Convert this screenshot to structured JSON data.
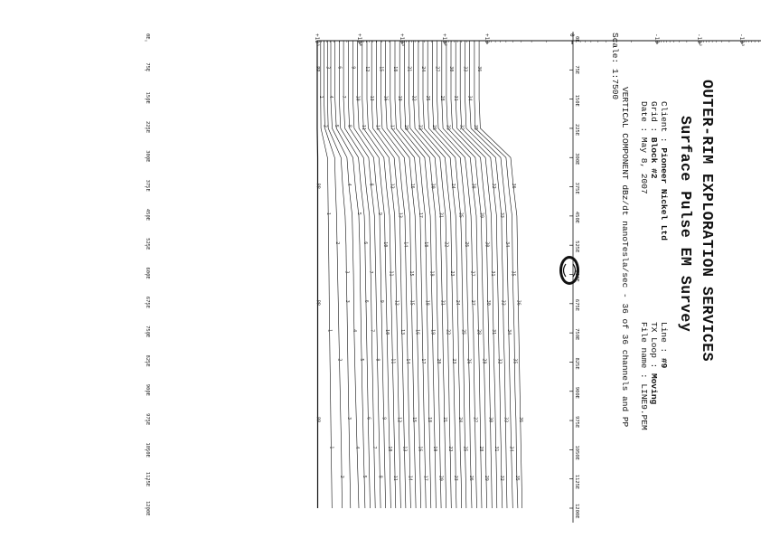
{
  "header": {
    "company": "OUTER-RIM EXPLORATION SERVICES",
    "survey": "Surface Pulse EM Survey",
    "client_label": "Client",
    "client": "Pioneer Nickel Ltd",
    "grid_label": "Grid",
    "grid": "Block #2",
    "date_label": "Date",
    "date": "May 8, 2007",
    "line_label": "Line",
    "line": "#9",
    "loop_label": "TX Loop",
    "loop": "Moving",
    "file_label": "File name",
    "file": "LINE9.PEM",
    "component": "VERTICAL COMPONENT dBz/dt nanoTesla/sec - 36 of 36 channels and PP",
    "scale": "Scale: 1:7500"
  },
  "chart_data": {
    "type": "line",
    "title": "Surface Pulse EM Survey",
    "ylabel": "VERTICAL COMPONENT dBz/dt nanoTesla/sec",
    "y_scale": "symmetric-log",
    "y_tick_labels": [
      "-10⁵",
      "-10⁴",
      "-10³",
      "-10²",
      "-10",
      "0",
      "+10",
      "+10²",
      "+10³",
      "+10⁴",
      "+10⁵"
    ],
    "x_tick_labels": [
      "0E",
      "75E",
      "150E",
      "225E",
      "300E",
      "375E",
      "450E",
      "525E",
      "600E",
      "675E",
      "750E",
      "825E",
      "900E",
      "975E",
      "1050E",
      "1125E",
      "1200E"
    ],
    "x": [
      0,
      75,
      150,
      225,
      300,
      375,
      450,
      525,
      600,
      675,
      750,
      825,
      900,
      975,
      1050,
      1125,
      1200
    ],
    "channel_count": 36,
    "series": [
      {
        "name": "PP",
        "values": [
          100000,
          100000,
          100000,
          100000,
          97800,
          97800,
          97800,
          97800,
          97800,
          97800,
          97800,
          97800,
          97800,
          97800,
          97800,
          97800,
          97800
        ]
      },
      {
        "name": "1",
        "values": [
          83176,
          83176,
          83176,
          81752,
          57544,
          56234,
          55000,
          54000,
          53000,
          52000,
          51000,
          50000,
          49000,
          48000,
          47000,
          46000,
          45000
        ]
      },
      {
        "name": "2",
        "values": [
          69183,
          69183,
          69183,
          66069,
          38905,
          37154,
          35000,
          34000,
          33000,
          32000,
          31000,
          30000,
          29000,
          28000,
          27000,
          26500,
          26000
        ]
      },
      {
        "name": "3",
        "values": [
          57544,
          57544,
          57544,
          54954,
          27542,
          25119,
          22000,
          21000,
          20500,
          20000,
          19500,
          19000,
          18500,
          18000,
          17500,
          17000,
          16500
        ]
      },
      {
        "name": "4",
        "values": [
          47863,
          47863,
          47863,
          44668,
          19953,
          17783,
          15000,
          14500,
          14000,
          13800,
          13500,
          13000,
          12500,
          12000,
          11500,
          11000,
          10500
        ]
      },
      {
        "name": "5",
        "values": [
          38019,
          38019,
          38019,
          35481,
          14454,
          12589,
          10500,
          10000,
          9800,
          9500,
          9300,
          9000,
          8700,
          8400,
          8100,
          7800,
          7500
        ]
      },
      {
        "name": "6",
        "values": [
          30200,
          30200,
          30200,
          28184,
          10715,
          9333,
          7800,
          7500,
          7300,
          7100,
          6900,
          6700,
          6500,
          6300,
          6100,
          5900,
          5700
        ]
      },
      {
        "name": "7",
        "values": [
          23988,
          23988,
          23988,
          22387,
          8128,
          7079,
          5900,
          5700,
          5500,
          5350,
          5200,
          5050,
          4900,
          4750,
          4600,
          4450,
          4300
        ]
      },
      {
        "name": "8",
        "values": [
          18620,
          18620,
          18620,
          17378,
          6166,
          5370,
          4500,
          4350,
          4200,
          4080,
          3950,
          3830,
          3700,
          3580,
          3460,
          3340,
          3220
        ]
      },
      {
        "name": "9",
        "values": [
          14454,
          14454,
          14454,
          13490,
          4677,
          4074,
          3400,
          3300,
          3200,
          3100,
          3000,
          2900,
          2800,
          2700,
          2620,
          2540,
          2460
        ]
      },
      {
        "name": "10",
        "values": [
          11220,
          11220,
          11220,
          10471,
          3548,
          3090,
          2600,
          2520,
          2440,
          2360,
          2280,
          2200,
          2130,
          2060,
          1990,
          1920,
          1850
        ]
      },
      {
        "name": "11",
        "values": [
          8710,
          8710,
          8710,
          8128,
          2692,
          2344,
          1980,
          1920,
          1860,
          1800,
          1740,
          1680,
          1620,
          1570,
          1520,
          1470,
          1420
        ]
      },
      {
        "name": "12",
        "values": [
          6761,
          6761,
          6761,
          6310,
          2042,
          1778,
          1500,
          1455,
          1410,
          1365,
          1320,
          1280,
          1240,
          1200,
          1160,
          1120,
          1080
        ]
      },
      {
        "name": "13",
        "values": [
          5248,
          5248,
          5248,
          4898,
          1549,
          1349,
          1140,
          1105,
          1070,
          1040,
          1010,
          975,
          945,
          915,
          885,
          855,
          825
        ]
      },
      {
        "name": "14",
        "values": [
          4074,
          4074,
          4074,
          3802,
          1175,
          1023,
          865,
          840,
          815,
          790,
          765,
          740,
          718,
          696,
          674,
          652,
          630
        ]
      },
      {
        "name": "15",
        "values": [
          3162,
          3162,
          3162,
          2951,
          891,
          776,
          656,
          637,
          618,
          599,
          580,
          562,
          545,
          528,
          511,
          494,
          478
        ]
      },
      {
        "name": "16",
        "values": [
          2455,
          2455,
          2455,
          2291,
          676,
          589,
          498,
          483,
          469,
          455,
          441,
          427,
          414,
          401,
          388,
          376,
          364
        ]
      },
      {
        "name": "17",
        "values": [
          1905,
          1905,
          1905,
          1778,
          513,
          447,
          378,
          367,
          356,
          345,
          335,
          324,
          314,
          305,
          295,
          286,
          277
        ]
      },
      {
        "name": "18",
        "values": [
          1479,
          1479,
          1479,
          1380,
          389,
          339,
          287,
          278,
          270,
          262,
          254,
          246,
          239,
          231,
          224,
          217,
          211
        ]
      },
      {
        "name": "19",
        "values": [
          1148,
          1148,
          1148,
          1072,
          295,
          257,
          218,
          211,
          205,
          199,
          193,
          187,
          181,
          176,
          170,
          165,
          160
        ]
      },
      {
        "name": "20",
        "values": [
          891,
          891,
          891,
          832,
          224,
          195,
          165,
          160,
          155,
          151,
          146,
          142,
          137,
          133,
          129,
          125,
          121
        ]
      },
      {
        "name": "21",
        "values": [
          692,
          692,
          692,
          646,
          170,
          148,
          125,
          122,
          118,
          114,
          111,
          108,
          104,
          101,
          98,
          95,
          92
        ]
      },
      {
        "name": "22",
        "values": [
          537,
          537,
          537,
          501,
          129,
          112,
          95,
          92,
          89,
          87,
          84,
          82,
          79,
          77,
          74,
          72,
          70
        ]
      },
      {
        "name": "23",
        "values": [
          417,
          417,
          417,
          389,
          98,
          85,
          72,
          70,
          68,
          66,
          64,
          62,
          60,
          58,
          56,
          55,
          53
        ]
      },
      {
        "name": "24",
        "values": [
          324,
          324,
          324,
          302,
          74,
          65,
          55,
          53,
          51,
          50,
          48,
          47,
          45,
          44,
          43,
          41,
          40
        ]
      },
      {
        "name": "25",
        "values": [
          251,
          251,
          251,
          234,
          56,
          49,
          42,
          40,
          39,
          38,
          37,
          36,
          35,
          34,
          33,
          32,
          31
        ]
      },
      {
        "name": "26",
        "values": [
          195,
          195,
          195,
          182,
          43,
          37,
          32,
          31,
          30,
          29,
          28,
          27,
          26,
          25.5,
          25,
          24,
          23
        ]
      },
      {
        "name": "27",
        "values": [
          151,
          151,
          151,
          141,
          33,
          28,
          24,
          23,
          22.5,
          22,
          21,
          20.5,
          20,
          19.4,
          18.8,
          18.2,
          17.6
        ]
      },
      {
        "name": "28",
        "values": [
          117,
          117,
          117,
          110,
          25,
          21.5,
          18,
          17.5,
          17,
          16.5,
          16,
          15.5,
          15,
          14.6,
          14.2,
          13.8,
          13.4
        ]
      },
      {
        "name": "29",
        "values": [
          91,
          91,
          91,
          85,
          19,
          16.3,
          13.8,
          13.4,
          13,
          12.6,
          12.2,
          11.8,
          11.4,
          11.1,
          10.8,
          10.5,
          10.2
        ]
      },
      {
        "name": "30",
        "values": [
          71,
          71,
          71,
          66,
          14.4,
          12.4,
          10.5,
          10.2,
          9.9,
          9.6,
          9.3,
          9,
          8.7,
          8.4,
          8.2,
          7.9,
          7.7
        ]
      },
      {
        "name": "31",
        "values": [
          55,
          55,
          55,
          51,
          11,
          9.4,
          8,
          7.8,
          7.5,
          7.3,
          7.1,
          6.9,
          6.6,
          6.4,
          6.2,
          6,
          5.9
        ]
      },
      {
        "name": "32",
        "values": [
          43,
          43,
          43,
          40,
          8.3,
          7.1,
          6,
          5.9,
          5.7,
          5.5,
          5.4,
          5.2,
          5,
          4.9,
          4.7,
          4.6,
          4.4
        ]
      },
      {
        "name": "33",
        "values": [
          33,
          33,
          33,
          31,
          6.3,
          5.4,
          4.6,
          4.5,
          4.3,
          4.2,
          4.1,
          3.9,
          3.8,
          3.7,
          3.6,
          3.5,
          3.4
        ]
      },
      {
        "name": "34",
        "values": [
          26,
          26,
          26,
          24,
          4.8,
          4.1,
          3.5,
          3.4,
          3.3,
          3.2,
          3.1,
          3,
          2.9,
          2.8,
          2.7,
          2.6,
          2.5
        ]
      },
      {
        "name": "35",
        "values": [
          20,
          20,
          20,
          19,
          3.6,
          3.1,
          2.6,
          2.55,
          2.5,
          2.4,
          2.3,
          2.25,
          2.2,
          2.1,
          2.05,
          2,
          1.9
        ]
      },
      {
        "name": "36",
        "values": [
          15.5,
          15.5,
          15.5,
          14.5,
          2.8,
          2.4,
          2,
          1.95,
          1.9,
          1.85,
          1.8,
          1.75,
          1.7,
          1.65,
          1.6,
          1.55,
          1.5
        ]
      }
    ]
  }
}
